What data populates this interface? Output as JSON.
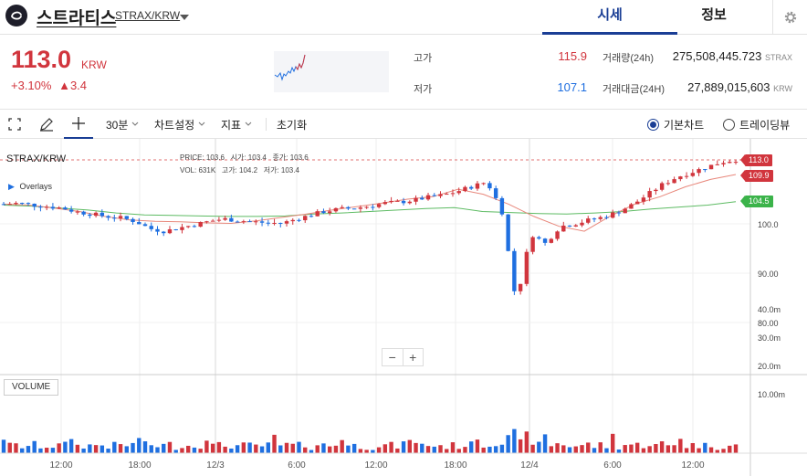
{
  "header": {
    "coin_name": "스트라티스",
    "pair": "STRAX/KRW",
    "tabs": [
      "시세",
      "정보"
    ]
  },
  "summary": {
    "price": "113.0",
    "unit": "KRW",
    "change_pct": "+3.10%",
    "change_abs": "▲3.4",
    "high_label": "고가",
    "high_value": "115.9",
    "low_label": "저가",
    "low_value": "107.1",
    "volume_label": "거래량(24h)",
    "volume_value": "275,508,445.723",
    "volume_unit": "STRAX",
    "turnover_label": "거래대금(24H)",
    "turnover_value": "27,889,015,603",
    "turnover_unit": "KRW"
  },
  "toolbar": {
    "interval": "30분",
    "chart_settings": "차트설정",
    "indicators": "지표",
    "reset": "초기화",
    "basic_chart": "기본차트",
    "tradingview": "트레이딩뷰"
  },
  "legend": {
    "symbol": "STRAX/KRW",
    "price_label": "PRICE:",
    "price_value": "103.6",
    "open_label": "시가:",
    "open_value": "103.4",
    "close_label": "종가:",
    "close_value": "103.6",
    "vol_label": "VOL:",
    "vol_value": "631K",
    "high_label": "고가:",
    "high_value": "104.2",
    "low_label": "저가:",
    "low_value": "103.4",
    "overlays": "Overlays",
    "volume_button": "VOLUME"
  },
  "price_tags": [
    {
      "value": "113.0",
      "color": "#d1353d"
    },
    {
      "value": "109.9",
      "color": "#d1353d"
    },
    {
      "value": "104.5",
      "color": "#3bb34a"
    }
  ],
  "colors": {
    "up": "#d1353d",
    "down": "#1f6fe0",
    "ma_short": "#e8877b",
    "ma_long": "#5dbb63",
    "accent": "#1a3e95"
  },
  "chart_data": {
    "type": "candlestick",
    "price_axis": {
      "ticks": [
        80,
        90,
        100
      ],
      "tick_labels": [
        "80.00",
        "90.00",
        "100.0"
      ]
    },
    "volume_axis": {
      "tick_labels": [
        "10.00m",
        "20.0m",
        "30.0m",
        "40.0m"
      ],
      "ticks_m": [
        10,
        20,
        30,
        40
      ]
    },
    "time_labels": [
      "12:00",
      "18:00",
      "12/3",
      "6:00",
      "12:00",
      "18:00",
      "12/4",
      "6:00",
      "12:00"
    ],
    "series": [
      {
        "name": "candles",
        "approx_close_path": [
          104,
          104.2,
          103.8,
          103.5,
          103.2,
          102.4,
          102,
          101.5,
          101.2,
          100.5,
          99,
          98.5,
          99.2,
          99.8,
          100.5,
          101,
          100.7,
          100.4,
          100.2,
          100.1,
          101,
          101.8,
          102.6,
          103,
          103.2,
          103.6,
          104.2,
          104.4,
          104.8,
          105.4,
          105.8,
          106.6,
          107.6,
          108.5,
          103,
          84,
          98,
          96,
          99.5,
          100,
          100.8,
          101.4,
          102.5,
          104,
          106,
          108,
          109.5,
          110.5,
          111.5,
          112.5,
          113
        ]
      },
      {
        "name": "short moving average",
        "approx_path": [
          104,
          103.8,
          103.2,
          102.5,
          101.5,
          100.8,
          100.5,
          100.4,
          100.2,
          100.1,
          100.6,
          101.3,
          102,
          102.8,
          103.5,
          104.2,
          105,
          105.5,
          107,
          106,
          104,
          101.5,
          99.5,
          98.5,
          101.5,
          104,
          105.5,
          107.5,
          109,
          110
        ]
      },
      {
        "name": "long moving average",
        "approx_path": [
          103.8,
          103.6,
          103.2,
          102.8,
          102.2,
          101.8,
          101.7,
          101.6,
          101.5,
          101.5,
          101.6,
          102,
          102.2,
          102.5,
          102.8,
          103.1,
          103.3,
          102.5,
          102.3,
          102.1,
          102.0,
          102.2,
          102.5,
          103,
          103.4,
          103.8,
          104.5
        ]
      }
    ],
    "last_price": 113.0,
    "high_24h": 115.9,
    "low_24h": 107.1
  }
}
